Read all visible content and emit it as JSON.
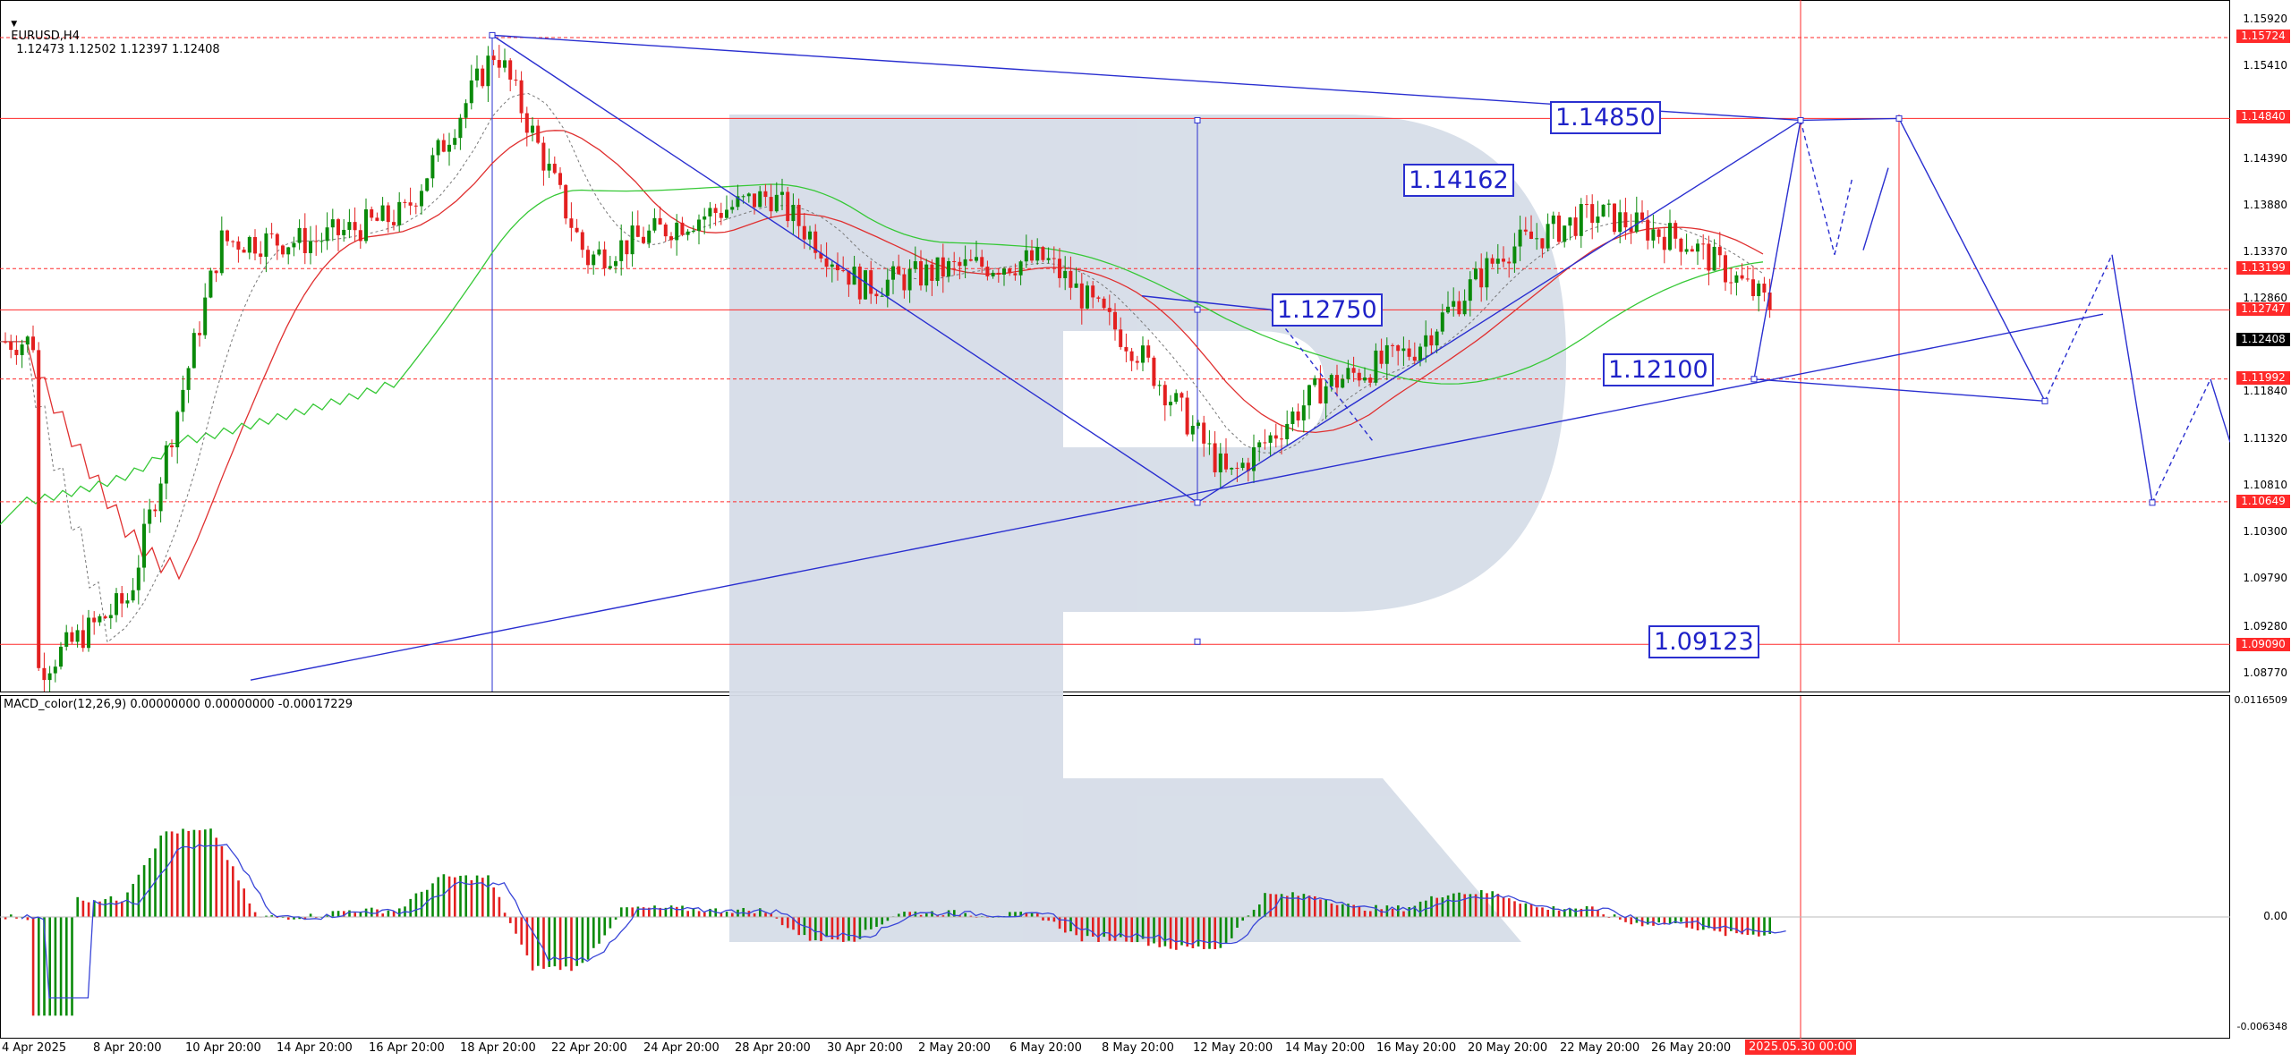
{
  "header": {
    "symbol_label": "EURUSD,H4",
    "ohlc": "1.12473 1.12502 1.12397 1.12408"
  },
  "macd": {
    "label": "MACD_color(12,26,9) 0.00000000 0.00000000 -0.00017229"
  },
  "price_axis": [
    "1.15920",
    "1.15410",
    "1.14390",
    "1.13880",
    "1.13370",
    "1.12860",
    "1.11840",
    "1.11320",
    "1.10810",
    "1.10300",
    "1.09790",
    "1.09280",
    "1.08770"
  ],
  "price_tags": {
    "t1": "1.15724",
    "t2": "1.14840",
    "t3": "1.13199",
    "t4": "1.12747",
    "current": "1.12408",
    "t5": "1.11992",
    "t6": "1.10649",
    "t7": "1.09090"
  },
  "macd_axis": {
    "top": "0.0116509",
    "zero": "0.00",
    "bottom": "-0.006348"
  },
  "time_axis": [
    "4 Apr 2025",
    "8 Apr 20:00",
    "10 Apr 20:00",
    "14 Apr 20:00",
    "16 Apr 20:00",
    "18 Apr 20:00",
    "22 Apr 20:00",
    "24 Apr 20:00",
    "28 Apr 20:00",
    "30 Apr 20:00",
    "2 May 20:00",
    "6 May 20:00",
    "8 May 20:00",
    "12 May 20:00",
    "14 May 20:00",
    "16 May 20:00",
    "20 May 20:00",
    "22 May 20:00",
    "26 May 20:00"
  ],
  "time_marker": "2025.05.30 00:00",
  "price_labels": {
    "a": "1.14850",
    "b": "1.14162",
    "c": "1.12750",
    "d": "1.12100",
    "e": "1.09123"
  },
  "colors": {
    "bull": "#0a8a0a",
    "bear": "#e32020",
    "level": "#ff2a2a",
    "forecast": "#2a2fd0",
    "ma_red": "#e03030",
    "ma_green": "#36c836",
    "watermark": "#d6dde8"
  },
  "icons": {
    "dropdown": "triangle-down-icon",
    "watermark": "r-logo-watermark"
  },
  "chart_data": {
    "type": "candlestick",
    "symbol": "EURUSD",
    "timeframe": "H4",
    "close_path": [
      [
        "4 Apr 2025",
        1.088
      ],
      [
        "8 Apr 20:00",
        1.096
      ],
      [
        "10 Apr 20:00",
        1.135
      ],
      [
        "14 Apr 20:00",
        1.135
      ],
      [
        "16 Apr 20:00",
        1.138
      ],
      [
        "18 Apr 20:00",
        1.156
      ],
      [
        "22 Apr 20:00",
        1.133
      ],
      [
        "24 Apr 20:00",
        1.137
      ],
      [
        "28 Apr 20:00",
        1.14
      ],
      [
        "30 Apr 20:00",
        1.13
      ],
      [
        "2 May 20:00",
        1.132
      ],
      [
        "6 May 20:00",
        1.133
      ],
      [
        "8 May 20:00",
        1.123
      ],
      [
        "12 May 20:00",
        1.109
      ],
      [
        "14 May 20:00",
        1.119
      ],
      [
        "16 May 20:00",
        1.123
      ],
      [
        "20 May 20:00",
        1.134
      ],
      [
        "22 May 20:00",
        1.138
      ],
      [
        "26 May 20:00",
        1.135
      ],
      [
        "2025.05.30 00:00",
        1.124
      ]
    ],
    "horizontal_levels": [
      1.15724,
      1.1484,
      1.13199,
      1.12747,
      1.11992,
      1.10649,
      1.0909
    ],
    "forecast_points": [
      1.1485,
      1.14162,
      1.1275,
      1.121,
      1.09123
    ],
    "macd_range": [
      -0.006348,
      0.0116509
    ]
  }
}
